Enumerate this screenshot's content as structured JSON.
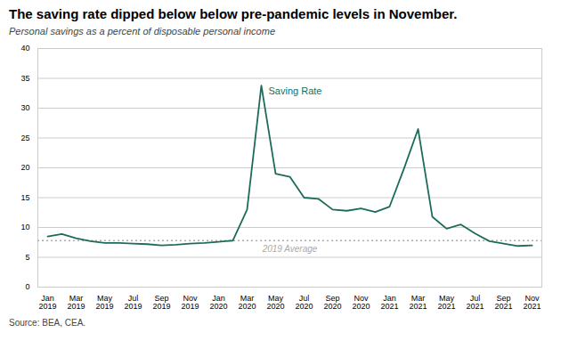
{
  "chart_data": {
    "type": "line",
    "title": "The saving rate dipped below below pre-pandemic levels in November.",
    "subtitle": "Personal savings as a percent of disposable personal income",
    "source": "Source: BEA, CEA.",
    "categories": [
      "Jan\n2019",
      null,
      "Mar\n2019",
      null,
      "May\n2019",
      null,
      "Jul\n2019",
      null,
      "Sep\n2019",
      null,
      "Nov\n2019",
      null,
      "Jan\n2020",
      null,
      "Mar\n2020",
      null,
      "May\n2020",
      null,
      "Jul\n2020",
      null,
      "Sep\n2020",
      null,
      "Nov\n2020",
      null,
      "Jan\n2021",
      null,
      "Mar\n2021",
      null,
      "May\n2021",
      null,
      "Jul\n2021",
      null,
      "Sep\n2021",
      null,
      "Nov\n2021"
    ],
    "series": [
      {
        "name": "Saving Rate",
        "color": "#1d6b5a",
        "values": [
          8.5,
          8.9,
          8.2,
          7.7,
          7.4,
          7.4,
          7.3,
          7.2,
          7.0,
          7.1,
          7.3,
          7.4,
          7.6,
          7.8,
          13.0,
          33.8,
          19.0,
          18.5,
          15.0,
          14.8,
          13.0,
          12.8,
          13.2,
          12.6,
          13.5,
          19.8,
          26.5,
          11.8,
          9.8,
          10.5,
          9.0,
          7.7,
          7.3,
          6.9,
          7.0
        ]
      }
    ],
    "reference_line": {
      "value": 7.8,
      "label": "2019 Average",
      "color": "#aaaaaa",
      "line_style": "dotted"
    },
    "ylim": [
      0,
      40
    ],
    "yticks": [
      0,
      5,
      10,
      15,
      20,
      25,
      30,
      35,
      40
    ],
    "grid": true
  }
}
